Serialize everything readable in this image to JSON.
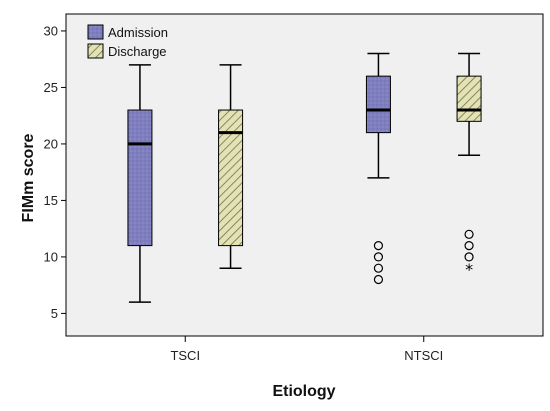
{
  "chart_data": {
    "type": "box",
    "xlabel": "Etiology",
    "ylabel": "FIMm score",
    "categories": [
      "TSCI",
      "NTSCI"
    ],
    "ylim": [
      3,
      31.5
    ],
    "yticks": [
      5,
      10,
      15,
      20,
      25,
      30
    ],
    "grid": false,
    "legend_position": "top-left",
    "series": [
      {
        "name": "Admission",
        "color": "#7F7FC0",
        "pattern": "dots",
        "boxes": [
          {
            "category": "TSCI",
            "min": 6,
            "q1": 11,
            "median": 20,
            "q3": 23,
            "max": 27,
            "outliers": [],
            "extremes": []
          },
          {
            "category": "NTSCI",
            "min": 17,
            "q1": 21,
            "median": 23,
            "q3": 26,
            "max": 28,
            "outliers": [
              11,
              10,
              9,
              8
            ],
            "extremes": []
          }
        ]
      },
      {
        "name": "Discharge",
        "color": "#D8D8A0",
        "pattern": "diagonal-hatch",
        "boxes": [
          {
            "category": "TSCI",
            "min": 9,
            "q1": 11,
            "median": 21,
            "q3": 23,
            "max": 27,
            "outliers": [],
            "extremes": []
          },
          {
            "category": "NTSCI",
            "min": 19,
            "q1": 22,
            "median": 23,
            "q3": 26,
            "max": 28,
            "outliers": [
              12,
              11,
              10
            ],
            "extremes": [
              9
            ]
          }
        ]
      }
    ]
  }
}
